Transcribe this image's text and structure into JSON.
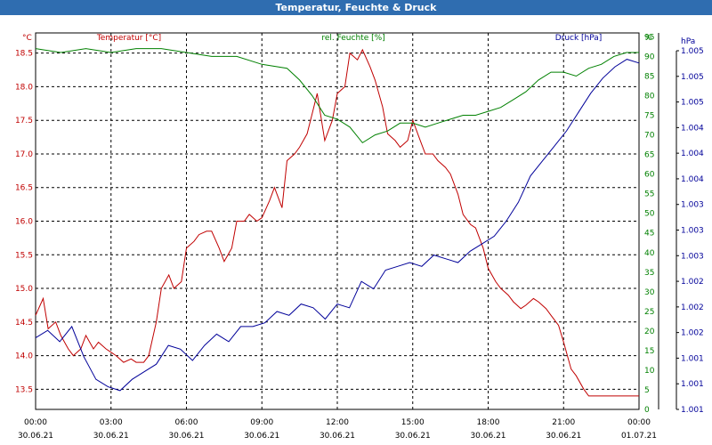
{
  "window": {
    "title": "Temperatur, Feuchte & Druck"
  },
  "colors": {
    "temperature": "#c00000",
    "humidity": "#008000",
    "pressure": "#000099",
    "grid": "#000000",
    "titlebar": "#2f6db0"
  },
  "chart_data": {
    "type": "line",
    "title": "Temperatur, Feuchte & Druck",
    "grid": true,
    "x_ticks": [
      {
        "time": "00:00",
        "date": "30.06.21"
      },
      {
        "time": "03:00",
        "date": "30.06.21"
      },
      {
        "time": "06:00",
        "date": "30.06.21"
      },
      {
        "time": "09:00",
        "date": "30.06.21"
      },
      {
        "time": "12:00",
        "date": "30.06.21"
      },
      {
        "time": "15:00",
        "date": "30.06.21"
      },
      {
        "time": "18:00",
        "date": "30.06.21"
      },
      {
        "time": "21:00",
        "date": "30.06.21"
      },
      {
        "time": "00:00",
        "date": "01.07.21"
      }
    ],
    "x_range_hours": [
      0,
      24
    ],
    "axes": {
      "temperature": {
        "unit": "°C",
        "ylim": [
          13.2,
          18.8
        ],
        "tick_values": [
          13.5,
          14.0,
          14.5,
          15.0,
          15.5,
          16.0,
          16.5,
          17.0,
          17.5,
          18.0,
          18.5
        ],
        "tick_labels": [
          "13.5",
          "14.0",
          "14.5",
          "15.0",
          "15.5",
          "16.0",
          "16.5",
          "17.0",
          "17.5",
          "18.0",
          "18.5"
        ]
      },
      "humidity": {
        "unit": "%",
        "ylim": [
          0,
          96
        ],
        "tick_values": [
          0,
          5,
          10,
          15,
          20,
          25,
          30,
          35,
          40,
          45,
          50,
          55,
          60,
          65,
          70,
          75,
          80,
          85,
          90,
          95
        ],
        "tick_labels": [
          "0",
          "5",
          "10",
          "15",
          "20",
          "25",
          "30",
          "35",
          "40",
          "45",
          "50",
          "55",
          "60",
          "65",
          "70",
          "75",
          "80",
          "85",
          "90",
          "95"
        ]
      },
      "pressure": {
        "unit": "hPa",
        "tick_labels": [
          "1.001",
          "1.001",
          "1.001",
          "1.002",
          "1.002",
          "1.002",
          "1.003",
          "1.003",
          "1.003",
          "1.004",
          "1.004",
          "1.004",
          "1.005",
          "1.005",
          "1.005"
        ]
      }
    },
    "series": [
      {
        "name": "Temperatur [°C]",
        "axis": "temperature",
        "x": [
          0,
          0.3,
          0.5,
          0.8,
          1,
          1.3,
          1.5,
          1.8,
          2,
          2.3,
          2.5,
          2.8,
          3,
          3.2,
          3.5,
          3.8,
          4,
          4.3,
          4.5,
          4.8,
          5,
          5.3,
          5.5,
          5.8,
          6,
          6.3,
          6.5,
          6.8,
          7,
          7.3,
          7.5,
          7.8,
          8,
          8.3,
          8.5,
          8.8,
          9,
          9.3,
          9.5,
          9.8,
          10,
          10.3,
          10.5,
          10.8,
          11,
          11.2,
          11.5,
          11.8,
          12,
          12.3,
          12.5,
          12.8,
          13,
          13.3,
          13.5,
          13.8,
          14,
          14.3,
          14.5,
          14.8,
          15,
          15.3,
          15.5,
          15.8,
          16,
          16.3,
          16.5,
          16.8,
          17,
          17.3,
          17.5,
          17.8,
          18,
          18.3,
          18.5,
          18.8,
          19,
          19.3,
          19.5,
          19.8,
          20,
          20.3,
          20.5,
          20.8,
          21,
          21.3,
          21.5,
          21.8,
          22,
          22.3,
          22.5,
          22.8,
          23,
          23.3,
          23.5,
          23.8,
          24
        ],
        "y": [
          14.6,
          14.85,
          14.4,
          14.5,
          14.3,
          14.1,
          14.0,
          14.1,
          14.3,
          14.1,
          14.2,
          14.1,
          14.05,
          14.0,
          13.9,
          13.95,
          13.9,
          13.9,
          14.0,
          14.5,
          15.0,
          15.2,
          15.0,
          15.1,
          15.6,
          15.7,
          15.8,
          15.85,
          15.85,
          15.6,
          15.4,
          15.6,
          16.0,
          16.0,
          16.1,
          16.0,
          16.05,
          16.3,
          16.5,
          16.2,
          16.9,
          17.0,
          17.1,
          17.3,
          17.6,
          17.9,
          17.2,
          17.5,
          17.9,
          18.0,
          18.5,
          18.4,
          18.55,
          18.3,
          18.1,
          17.7,
          17.3,
          17.2,
          17.1,
          17.2,
          17.5,
          17.2,
          17.0,
          17.0,
          16.9,
          16.8,
          16.7,
          16.4,
          16.1,
          15.95,
          15.9,
          15.6,
          15.3,
          15.1,
          15.0,
          14.9,
          14.8,
          14.7,
          14.75,
          14.85,
          14.8,
          14.7,
          14.6,
          14.45,
          14.2,
          13.8,
          13.7,
          13.5,
          13.4,
          13.4,
          13.4,
          13.4,
          13.4,
          13.4,
          13.4,
          13.4,
          13.4
        ],
        "x_extent": 24
      },
      {
        "name": "rel. Feuchte [%]",
        "axis": "humidity",
        "x": [
          0,
          1,
          2,
          3,
          4,
          5,
          6,
          7,
          8,
          9,
          10,
          10.5,
          11,
          11.5,
          12,
          12.5,
          13,
          13.5,
          14,
          14.5,
          15,
          15.5,
          16,
          16.5,
          17,
          17.5,
          18,
          18.5,
          19,
          19.5,
          20,
          20.5,
          21,
          21.5,
          22,
          22.5,
          23,
          23.5,
          24
        ],
        "y": [
          92,
          91,
          92,
          91,
          92,
          92,
          91,
          90,
          90,
          88,
          87,
          84,
          80,
          75,
          74,
          72,
          68,
          70,
          71,
          73,
          73,
          72,
          73,
          74,
          75,
          75,
          76,
          77,
          79,
          81,
          84,
          86,
          86,
          85,
          87,
          88,
          90,
          91,
          91
        ]
      },
      {
        "name": "Druck [hPa]",
        "axis": "pressure",
        "relative_level": [
          0.19,
          0.21,
          0.18,
          0.22,
          0.14,
          0.08,
          0.06,
          0.05,
          0.08,
          0.1,
          0.12,
          0.17,
          0.16,
          0.13,
          0.17,
          0.2,
          0.18,
          0.22,
          0.22,
          0.23,
          0.26,
          0.25,
          0.28,
          0.27,
          0.24,
          0.28,
          0.27,
          0.34,
          0.32,
          0.37,
          0.38,
          0.39,
          0.38,
          0.41,
          0.4,
          0.39,
          0.42,
          0.44,
          0.46,
          0.5,
          0.55,
          0.62,
          0.66,
          0.7,
          0.74,
          0.79,
          0.84,
          0.88,
          0.91,
          0.93,
          0.92
        ],
        "x_extent": 24
      }
    ]
  }
}
